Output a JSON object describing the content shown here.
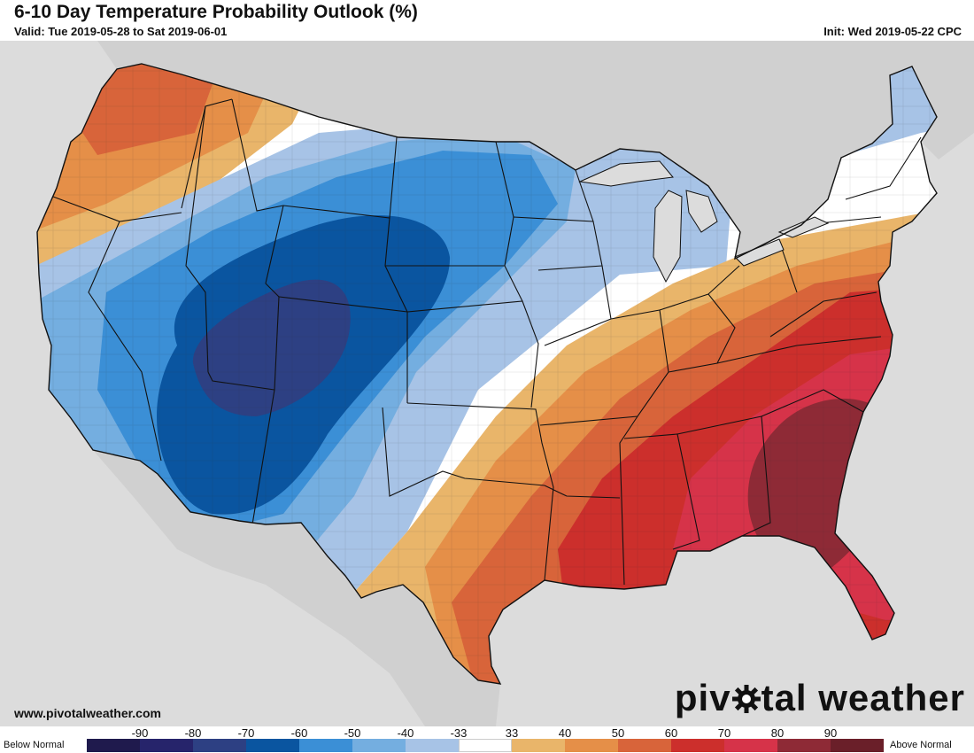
{
  "header": {
    "title": "6-10 Day Temperature Probability Outlook (%)",
    "valid": "Valid: Tue 2019-05-28 to Sat 2019-06-01",
    "init": "Init: Wed 2019-05-22 CPC"
  },
  "footer": {
    "website": "www.pivotalweather.com",
    "logo_left": "piv",
    "logo_right": "tal weather"
  },
  "legend": {
    "below_label": "Below Normal",
    "above_label": "Above Normal",
    "ticks": [
      "-90",
      "-80",
      "-70",
      "-60",
      "-50",
      "-40",
      "-33",
      "33",
      "40",
      "50",
      "60",
      "70",
      "80",
      "90"
    ],
    "colors": [
      "#1f1a4d",
      "#26246b",
      "#2d4083",
      "#0a55a0",
      "#3b8fd6",
      "#74aee0",
      "#a7c3e6",
      "#ffffff",
      "#e9b56a",
      "#e58f48",
      "#d8643a",
      "#cc2f2c",
      "#d63349",
      "#8e2a36",
      "#6a1f29"
    ]
  },
  "map_colors": {
    "land": "#ffffff",
    "ocean": "#dcdcdc",
    "state_border": "#111111"
  }
}
